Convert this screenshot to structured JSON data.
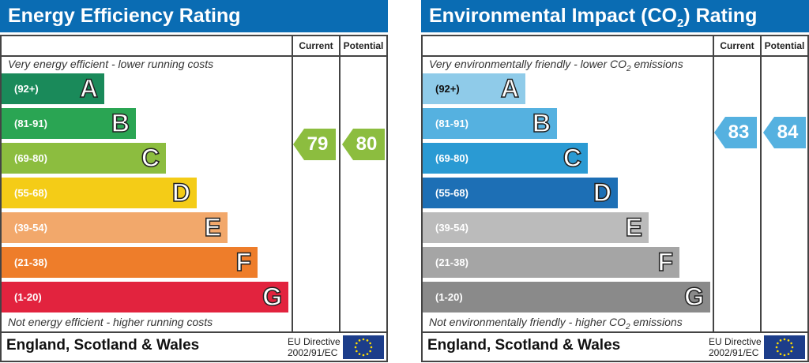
{
  "chart_data": [
    {
      "type": "bar",
      "title": "Energy Efficiency Rating",
      "columns": [
        "Current",
        "Potential"
      ],
      "top_caption": "Very energy efficient - lower running costs",
      "bottom_caption": "Not energy efficient - higher running costs",
      "bands": [
        {
          "letter": "A",
          "range": "(92+)",
          "color": "#1a8a5a"
        },
        {
          "letter": "B",
          "range": "(81-91)",
          "color": "#2aa553"
        },
        {
          "letter": "C",
          "range": "(69-80)",
          "color": "#8cbd3f"
        },
        {
          "letter": "D",
          "range": "(55-68)",
          "color": "#f4cc17"
        },
        {
          "letter": "E",
          "range": "(39-54)",
          "color": "#f2a86b"
        },
        {
          "letter": "F",
          "range": "(21-38)",
          "color": "#ee7d2a"
        },
        {
          "letter": "G",
          "range": "(1-20)",
          "color": "#e2233e"
        }
      ],
      "current": {
        "value": "79",
        "band": "C",
        "color": "#8cbd3f"
      },
      "potential": {
        "value": "80",
        "band": "C",
        "color": "#8cbd3f"
      },
      "footer": "England, Scotland & Wales",
      "directive": [
        "EU Directive",
        "2002/91/EC"
      ]
    },
    {
      "type": "bar",
      "title": "Environmental Impact (CO2) Rating",
      "columns": [
        "Current",
        "Potential"
      ],
      "top_caption": "Very environmentally friendly - lower CO2 emissions",
      "bottom_caption": "Not environmentally friendly - higher CO2 emissions",
      "bands": [
        {
          "letter": "A",
          "range": "(92+)",
          "color": "#8fcbe9"
        },
        {
          "letter": "B",
          "range": "(81-91)",
          "color": "#55b1e0"
        },
        {
          "letter": "C",
          "range": "(69-80)",
          "color": "#2a9ad3"
        },
        {
          "letter": "D",
          "range": "(55-68)",
          "color": "#1d6fb5"
        },
        {
          "letter": "E",
          "range": "(39-54)",
          "color": "#bbbbbb"
        },
        {
          "letter": "F",
          "range": "(21-38)",
          "color": "#a5a5a5"
        },
        {
          "letter": "G",
          "range": "(1-20)",
          "color": "#8a8a8a"
        }
      ],
      "current": {
        "value": "83",
        "band": "B",
        "color": "#55b1e0"
      },
      "potential": {
        "value": "84",
        "band": "B",
        "color": "#55b1e0"
      },
      "footer": "England, Scotland & Wales",
      "directive": [
        "EU Directive",
        "2002/91/EC"
      ]
    }
  ]
}
